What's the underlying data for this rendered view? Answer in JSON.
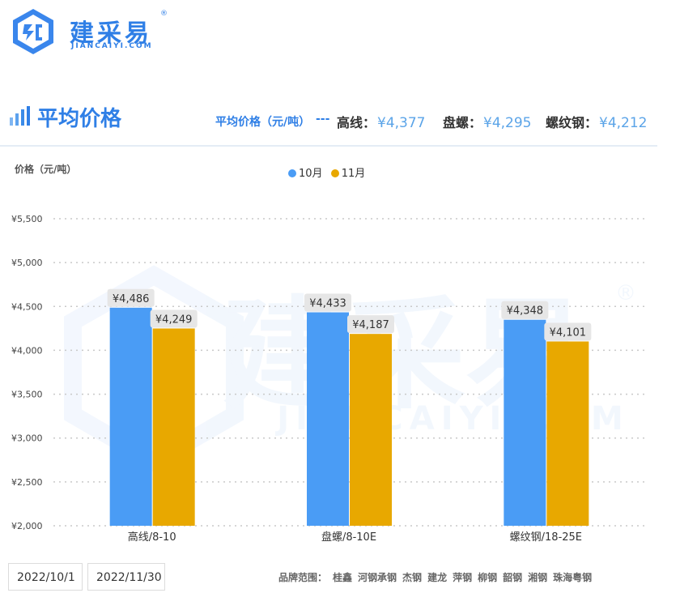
{
  "logo": {
    "cn": "建采易",
    "en": "JIANCAIYI.COM",
    "reg": "®"
  },
  "title": "平均价格",
  "avg": {
    "label": "平均价格（元/吨）",
    "dash": "---",
    "stats": [
      {
        "name": "高线：",
        "value": "¥4,377"
      },
      {
        "name": "盘螺：",
        "value": "¥4,295"
      },
      {
        "name": "螺纹钢：",
        "value": "¥4,212"
      }
    ]
  },
  "dates": {
    "start": "2022/10/1",
    "end": "2022/11/30"
  },
  "brands": {
    "label": "品牌范围：",
    "list": [
      "桂鑫",
      "河钢承钢",
      "杰钢",
      "建龙",
      "萍钢",
      "柳钢",
      "韶钢",
      "湘钢",
      "珠海粤钢"
    ]
  },
  "colors": {
    "accent": "#2f7fe6",
    "oct": "#4a9cf5",
    "nov": "#e8a800"
  },
  "chart_data": {
    "type": "bar",
    "ylabel": "价格（元/吨）",
    "categories": [
      "高线/8-10",
      "盘螺/8-10E",
      "螺纹钢/18-25E"
    ],
    "series": [
      {
        "name": "10月",
        "values": [
          4486,
          4433,
          4348
        ],
        "labels": [
          "¥4,486",
          "¥4,433",
          "¥4,348"
        ]
      },
      {
        "name": "11月",
        "values": [
          4249,
          4187,
          4101
        ],
        "labels": [
          "¥4,249",
          "¥4,187",
          "¥4,101"
        ]
      }
    ],
    "ylim": [
      2000,
      5500
    ],
    "yticks": [
      2000,
      2500,
      3000,
      3500,
      4000,
      4500,
      5000,
      5500
    ],
    "ytick_labels": [
      "¥2,000",
      "¥2,500",
      "¥3,000",
      "¥3,500",
      "¥4,000",
      "¥4,500",
      "¥5,000",
      "¥5,500"
    ],
    "grid": true,
    "legend": "top-center"
  }
}
